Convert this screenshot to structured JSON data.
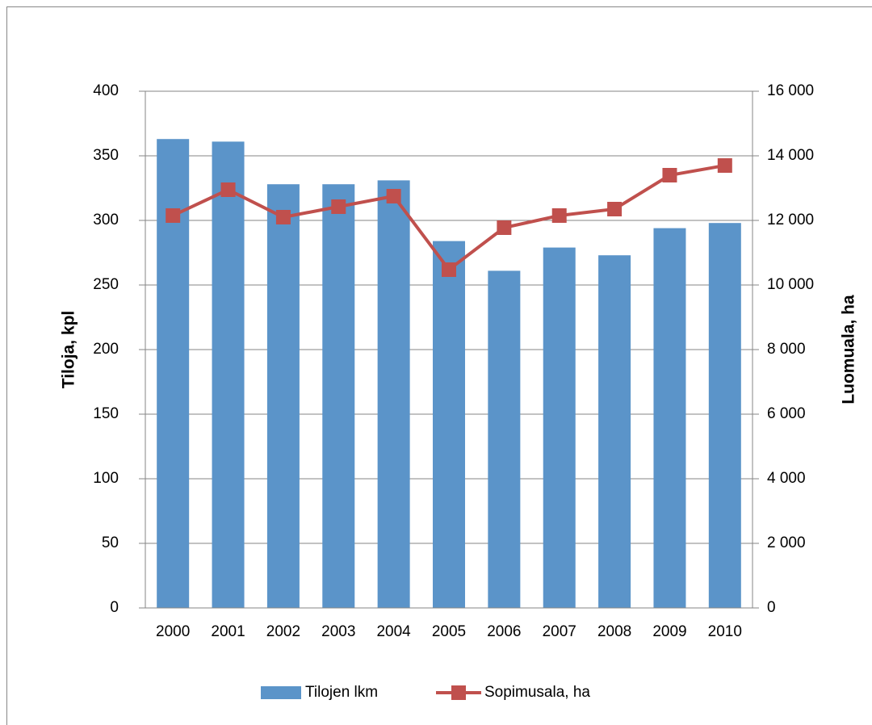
{
  "chart_data": {
    "type": "bar",
    "categories": [
      "2000",
      "2001",
      "2002",
      "2003",
      "2004",
      "2005",
      "2006",
      "2007",
      "2008",
      "2009",
      "2010"
    ],
    "y_label": "Tiloja, kpl",
    "y2_label": "Luomuala, ha",
    "ylim": [
      0,
      400
    ],
    "yticks": [
      0,
      50,
      100,
      150,
      200,
      250,
      300,
      350,
      400
    ],
    "y2lim": [
      0,
      16000
    ],
    "y2ticks": [
      0,
      {
        "value": 2000,
        "label": "2 000"
      },
      {
        "value": 4000,
        "label": "4 000"
      },
      {
        "value": 6000,
        "label": "6 000"
      },
      {
        "value": 8000,
        "label": "8 000"
      },
      {
        "value": 10000,
        "label": "10 000"
      },
      {
        "value": 12000,
        "label": "12 000"
      },
      {
        "value": 14000,
        "label": "14 000"
      },
      {
        "value": 16000,
        "label": "16 000"
      }
    ],
    "grid": true,
    "legend": "bottom",
    "series": [
      {
        "name": "Tilojen lkm",
        "type": "bar",
        "color": "#5b94c9",
        "values": [
          363,
          361,
          328,
          328,
          331,
          284,
          261,
          279,
          273,
          294,
          298
        ]
      },
      {
        "name": "Sopimusala, ha",
        "type": "line",
        "axis": "y2",
        "color": "#c0504d",
        "values": [
          12150,
          12950,
          12100,
          12425,
          12750,
          10475,
          11775,
          12150,
          12350,
          13400,
          13700
        ]
      }
    ]
  }
}
